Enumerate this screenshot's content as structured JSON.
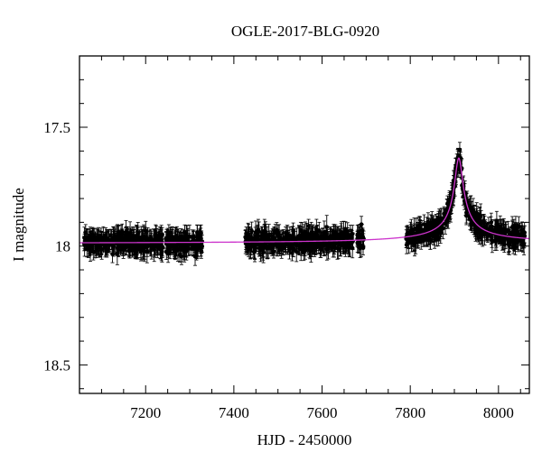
{
  "chart_data": {
    "type": "scatter",
    "title": "OGLE-2017-BLG-0920",
    "xlabel": "HJD - 2450000",
    "ylabel": "I magnitude",
    "xlim": [
      7050,
      8070
    ],
    "ylim": [
      17.2,
      18.62
    ],
    "y_inverted": true,
    "x_ticks": [
      7200,
      7400,
      7600,
      7800,
      8000
    ],
    "y_ticks": [
      17.5,
      18,
      18.5
    ],
    "x_tick_labels": [
      "7200",
      "7400",
      "7600",
      "7800",
      "8000"
    ],
    "y_tick_labels": [
      "17.5",
      "18",
      "18.5"
    ],
    "grid": false,
    "colors": {
      "points": "#000000",
      "model": "#cc33cc"
    },
    "series": [
      {
        "type": "scatter_errorbars",
        "coverage_x_ranges": [
          [
            7060,
            7240
          ],
          [
            7245,
            7330
          ],
          [
            7425,
            7670
          ],
          [
            7680,
            7695
          ],
          [
            7790,
            8060
          ]
        ],
        "baseline_mag": 17.99
      },
      {
        "type": "line",
        "baseline_mag": 17.99,
        "peak_x": 7910,
        "peak_mag": 17.63
      }
    ]
  }
}
